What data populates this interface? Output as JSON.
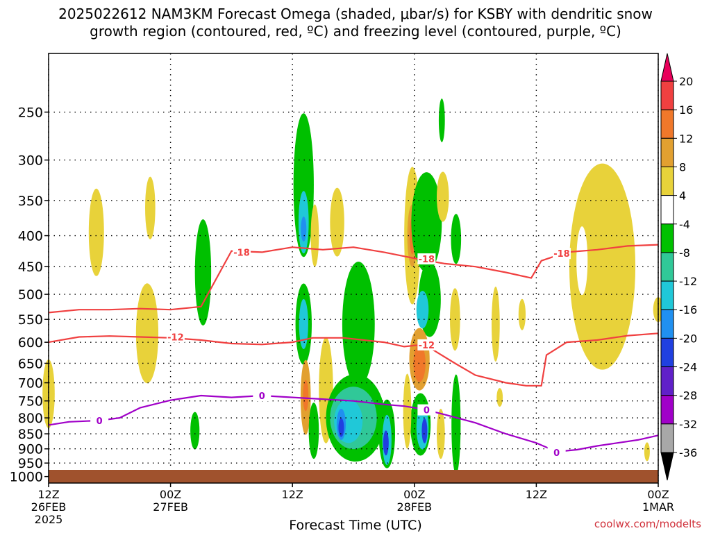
{
  "title_line1": "2025022612 NAM3KM Forecast Omega (shaded, μbar/s) for KSBY with dendritic snow",
  "title_line2": "growth region (contoured, red, ºC) and freezing level (contoured, purple, ºC)",
  "x_axis_title": "Forecast Time (UTC)",
  "credit": "coolwx.com/modelts",
  "chart_data": {
    "type": "heatmap",
    "x_ticks": [
      {
        "hours": 0,
        "line1": "12Z",
        "line2": "26FEB",
        "line3": "2025"
      },
      {
        "hours": 12,
        "line1": "00Z",
        "line2": "27FEB",
        "line3": ""
      },
      {
        "hours": 24,
        "line1": "12Z",
        "line2": "",
        "line3": ""
      },
      {
        "hours": 36,
        "line1": "00Z",
        "line2": "28FEB",
        "line3": ""
      },
      {
        "hours": 48,
        "line1": "12Z",
        "line2": "",
        "line3": ""
      },
      {
        "hours": 60,
        "line1": "00Z",
        "line2": "1MAR",
        "line3": ""
      }
    ],
    "y_ticks": [
      250,
      300,
      350,
      400,
      450,
      500,
      550,
      600,
      650,
      700,
      750,
      800,
      850,
      900,
      950,
      1000
    ],
    "y_range_hPa": [
      200,
      1025
    ],
    "y_scale": "log-pressure (inverted)",
    "colorbar": {
      "labels": [
        "20",
        "16",
        "12",
        "8",
        "4",
        "-4",
        "-8",
        "-12",
        "-16",
        "-20",
        "-24",
        "-28",
        "-32",
        "-36"
      ],
      "colors": [
        "#e8005a",
        "#f04040",
        "#f0782a",
        "#e2a030",
        "#e8d23a",
        "#ffffff",
        "#00c000",
        "#30c898",
        "#20c8d8",
        "#2090f0",
        "#2040e0",
        "#6020c8",
        "#a000c8",
        "#a8a8a8",
        "#000000"
      ]
    },
    "contours": [
      {
        "name": "-18",
        "color": "#f04040",
        "points": [
          [
            0,
            536
          ],
          [
            3,
            530
          ],
          [
            6,
            530
          ],
          [
            9,
            528
          ],
          [
            12,
            530
          ],
          [
            15,
            524
          ],
          [
            18,
            424
          ],
          [
            21,
            426
          ],
          [
            24,
            418
          ],
          [
            27,
            422
          ],
          [
            30,
            418
          ],
          [
            33,
            426
          ],
          [
            36,
            436
          ],
          [
            39,
            445
          ],
          [
            42,
            450
          ],
          [
            45,
            460
          ],
          [
            47.5,
            470
          ],
          [
            48.5,
            440
          ],
          [
            51,
            426
          ],
          [
            54,
            422
          ],
          [
            57,
            416
          ],
          [
            60,
            414
          ]
        ],
        "labels": [
          [
            19,
            426
          ],
          [
            37.2,
            437
          ],
          [
            50.5,
            428
          ]
        ]
      },
      {
        "name": "-12",
        "color": "#f04040",
        "points": [
          [
            0,
            600
          ],
          [
            3,
            588
          ],
          [
            6,
            586
          ],
          [
            9,
            588
          ],
          [
            12,
            590
          ],
          [
            15,
            595
          ],
          [
            18,
            603
          ],
          [
            21,
            605
          ],
          [
            24,
            600
          ],
          [
            26,
            590
          ],
          [
            29,
            590
          ],
          [
            33,
            600
          ],
          [
            35,
            610
          ],
          [
            37,
            605
          ],
          [
            38,
            620
          ],
          [
            40,
            650
          ],
          [
            42,
            680
          ],
          [
            45,
            700
          ],
          [
            47,
            708
          ],
          [
            48.5,
            708
          ],
          [
            49,
            630
          ],
          [
            51,
            600
          ],
          [
            54,
            595
          ],
          [
            57,
            585
          ],
          [
            60,
            580
          ]
        ],
        "labels": [
          [
            12.5,
            588
          ],
          [
            37.2,
            606
          ]
        ]
      },
      {
        "name": "0",
        "color": "#a000c8",
        "points": [
          [
            0,
            822
          ],
          [
            2,
            812
          ],
          [
            5,
            808
          ],
          [
            7,
            800
          ],
          [
            9,
            770
          ],
          [
            12,
            748
          ],
          [
            15,
            735
          ],
          [
            18,
            740
          ],
          [
            21,
            735
          ],
          [
            24,
            740
          ],
          [
            27,
            745
          ],
          [
            30,
            750
          ],
          [
            33,
            760
          ],
          [
            35,
            765
          ],
          [
            36,
            770
          ],
          [
            37,
            775
          ],
          [
            39,
            790
          ],
          [
            42,
            815
          ],
          [
            45,
            850
          ],
          [
            48,
            880
          ],
          [
            50,
            910
          ],
          [
            52,
            903
          ],
          [
            54,
            890
          ],
          [
            56,
            880
          ],
          [
            58,
            870
          ],
          [
            60,
            855
          ]
        ],
        "labels": [
          [
            5,
            808
          ],
          [
            21,
            735
          ],
          [
            37.2,
            776
          ],
          [
            50,
            912
          ]
        ]
      }
    ],
    "shaded_regions": [
      {
        "color": "#e8d23a",
        "x": 0,
        "p": 730,
        "w": 1.2,
        "h": 110
      },
      {
        "color": "#e8d23a",
        "x": 4.7,
        "p": 395,
        "w": 1.5,
        "h": 140
      },
      {
        "color": "#e8d23a",
        "x": 9.7,
        "p": 580,
        "w": 2.2,
        "h": 160
      },
      {
        "color": "#e8d23a",
        "x": 10,
        "p": 360,
        "w": 1.0,
        "h": 100
      },
      {
        "color": "#00c000",
        "x": 15.2,
        "p": 460,
        "w": 1.6,
        "h": 170
      },
      {
        "color": "#00c000",
        "x": 14.4,
        "p": 840,
        "w": 0.9,
        "h": 60
      },
      {
        "color": "#00c000",
        "x": 25.1,
        "p": 330,
        "w": 2.0,
        "h": 230
      },
      {
        "color": "#20c8d8",
        "x": 25.1,
        "p": 380,
        "w": 1.0,
        "h": 100
      },
      {
        "color": "#2090f0",
        "x": 25.1,
        "p": 390,
        "w": 0.4,
        "h": 40
      },
      {
        "color": "#00c000",
        "x": 25.1,
        "p": 560,
        "w": 1.6,
        "h": 130
      },
      {
        "color": "#20c8d8",
        "x": 25.1,
        "p": 560,
        "w": 0.9,
        "h": 80
      },
      {
        "color": "#e8d23a",
        "x": 26.2,
        "p": 400,
        "w": 0.8,
        "h": 100
      },
      {
        "color": "#e8d23a",
        "x": 28.4,
        "p": 380,
        "w": 1.4,
        "h": 110
      },
      {
        "color": "#e2a030",
        "x": 25.3,
        "p": 740,
        "w": 1.0,
        "h": 120
      },
      {
        "color": "#f0782a",
        "x": 25.3,
        "p": 735,
        "w": 0.4,
        "h": 50
      },
      {
        "color": "#00c000",
        "x": 26.1,
        "p": 840,
        "w": 1.0,
        "h": 90
      },
      {
        "color": "#e8d23a",
        "x": 27.3,
        "p": 720,
        "w": 1.4,
        "h": 170
      },
      {
        "color": "#00c000",
        "x": 30.5,
        "p": 560,
        "w": 3.2,
        "h": 200
      },
      {
        "color": "#00c000",
        "x": 30.2,
        "p": 800,
        "w": 5.8,
        "h": 140
      },
      {
        "color": "#30c898",
        "x": 30,
        "p": 800,
        "w": 4.6,
        "h": 100
      },
      {
        "color": "#20c8d8",
        "x": 29.5,
        "p": 810,
        "w": 2.8,
        "h": 70
      },
      {
        "color": "#2090f0",
        "x": 28.8,
        "p": 820,
        "w": 0.9,
        "h": 50
      },
      {
        "color": "#2040e0",
        "x": 28.8,
        "p": 830,
        "w": 0.4,
        "h": 30
      },
      {
        "color": "#00c000",
        "x": 33.3,
        "p": 850,
        "w": 1.6,
        "h": 110
      },
      {
        "color": "#20c8d8",
        "x": 33.3,
        "p": 870,
        "w": 0.9,
        "h": 80
      },
      {
        "color": "#2040e0",
        "x": 33.2,
        "p": 880,
        "w": 0.4,
        "h": 40
      },
      {
        "color": "#e8d23a",
        "x": 35.8,
        "p": 400,
        "w": 1.6,
        "h": 220
      },
      {
        "color": "#e2a030",
        "x": 35.8,
        "p": 400,
        "w": 1.0,
        "h": 100
      },
      {
        "color": "#f0782a",
        "x": 35.8,
        "p": 400,
        "w": 0.5,
        "h": 60
      },
      {
        "color": "#00c000",
        "x": 37.2,
        "p": 380,
        "w": 3.0,
        "h": 160
      },
      {
        "color": "#00c000",
        "x": 37.5,
        "p": 510,
        "w": 2.2,
        "h": 120
      },
      {
        "color": "#20c8d8",
        "x": 36.8,
        "p": 530,
        "w": 1.2,
        "h": 60
      },
      {
        "color": "#e2a030",
        "x": 36.5,
        "p": 640,
        "w": 2.0,
        "h": 100
      },
      {
        "color": "#f0782a",
        "x": 36.5,
        "p": 650,
        "w": 1.2,
        "h": 60
      },
      {
        "color": "#00c000",
        "x": 36.6,
        "p": 820,
        "w": 2.0,
        "h": 100
      },
      {
        "color": "#20c8d8",
        "x": 36.8,
        "p": 830,
        "w": 1.2,
        "h": 70
      },
      {
        "color": "#2040e0",
        "x": 37.0,
        "p": 840,
        "w": 0.4,
        "h": 40
      },
      {
        "color": "#e8d23a",
        "x": 35.3,
        "p": 780,
        "w": 0.8,
        "h": 120
      },
      {
        "color": "#e8d23a",
        "x": 38.6,
        "p": 850,
        "w": 0.8,
        "h": 80
      },
      {
        "color": "#00c000",
        "x": 38.7,
        "p": 258,
        "w": 0.6,
        "h": 70
      },
      {
        "color": "#e8d23a",
        "x": 38.8,
        "p": 345,
        "w": 1.2,
        "h": 80
      },
      {
        "color": "#00c000",
        "x": 40.1,
        "p": 405,
        "w": 1.0,
        "h": 80
      },
      {
        "color": "#e8d23a",
        "x": 40,
        "p": 550,
        "w": 1.0,
        "h": 100
      },
      {
        "color": "#00c000",
        "x": 40.1,
        "p": 820,
        "w": 0.9,
        "h": 160
      },
      {
        "color": "#e8d23a",
        "x": 44,
        "p": 560,
        "w": 0.8,
        "h": 120
      },
      {
        "color": "#e8d23a",
        "x": 44.4,
        "p": 740,
        "w": 0.6,
        "h": 30
      },
      {
        "color": "#e8d23a",
        "x": 46.6,
        "p": 540,
        "w": 0.7,
        "h": 50
      },
      {
        "color": "#e8d23a",
        "x": 54.5,
        "p": 450,
        "w": 6.5,
        "h": 330
      },
      {
        "color": "#ffffff",
        "x": 52.5,
        "p": 440,
        "w": 1.1,
        "h": 110
      },
      {
        "color": "#e8d23a",
        "x": 60,
        "p": 530,
        "w": 1.0,
        "h": 40
      },
      {
        "color": "#e8d23a",
        "x": 58.9,
        "p": 910,
        "w": 0.5,
        "h": 30
      }
    ]
  }
}
